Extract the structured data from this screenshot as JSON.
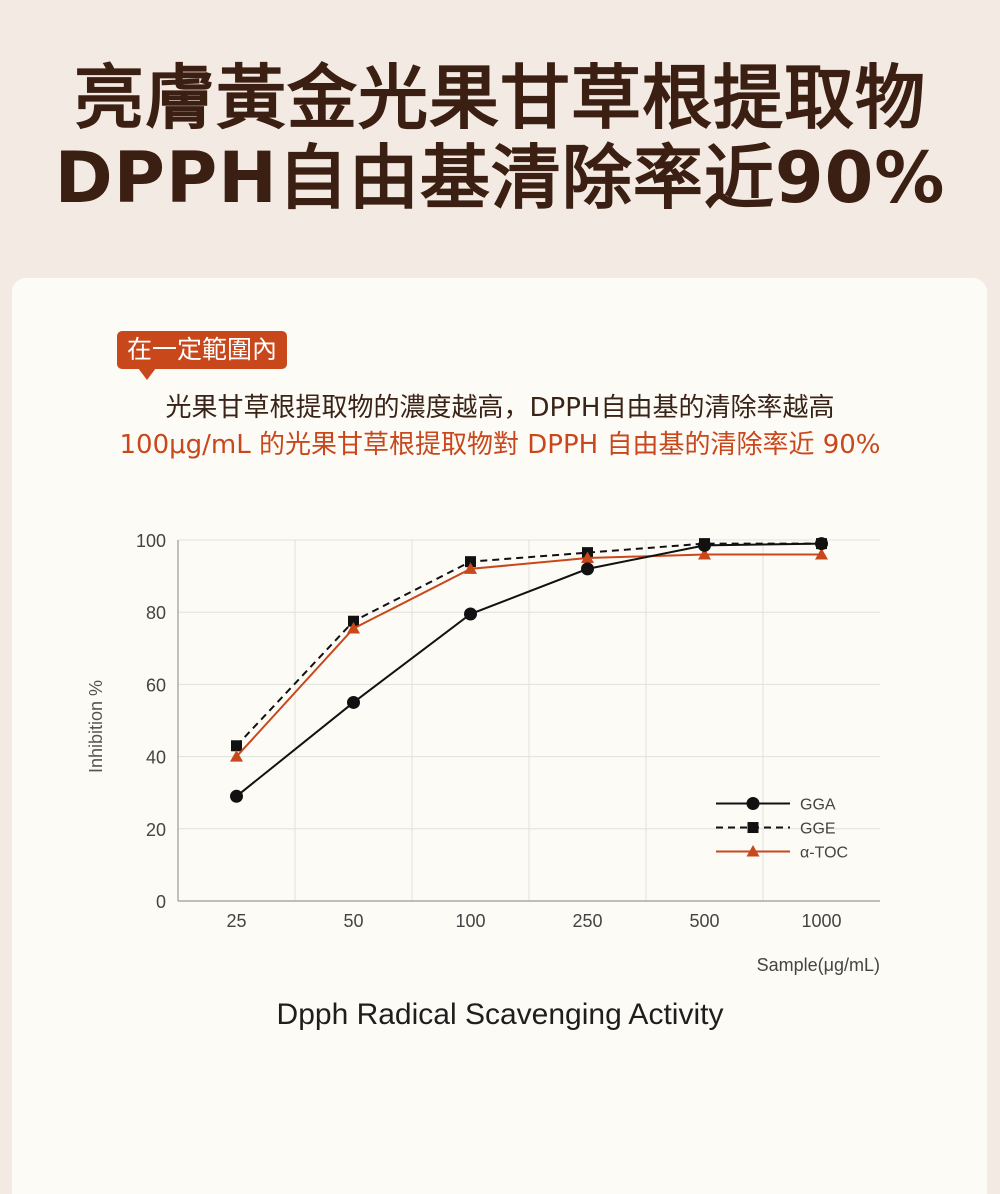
{
  "headline": {
    "line1": "亮膚黃金光果甘草根提取物",
    "line2": "DPPH自由基清除率近90%"
  },
  "tag_label": "在一定範圍內",
  "description": {
    "line1": "光果甘草根提取物的濃度越高，DPPH自由基的清除率越高",
    "line2": "100μg/mL 的光果甘草根提取物對 DPPH 自由基的清除率近 90%"
  },
  "colors": {
    "background": "#f3ebe3",
    "card": "#fdfbf6",
    "headline": "#3b1f12",
    "accent": "#c8481c",
    "series_black": "#111111"
  },
  "chart_data": {
    "type": "line",
    "title": "Dpph Radical Scavenging Activity",
    "xlabel": "Sample(μg/mL)",
    "ylabel": "Inhibition %",
    "categories": [
      "25",
      "50",
      "100",
      "250",
      "500",
      "1000"
    ],
    "yticks": [
      "0",
      "20",
      "40",
      "60",
      "80",
      "100"
    ],
    "ylim": [
      0,
      100
    ],
    "grid": true,
    "legend_position": "bottom-right",
    "series": [
      {
        "name": "GGA",
        "style": "solid",
        "marker": "circle",
        "color": "#111111",
        "values": [
          29,
          55,
          79.5,
          92,
          98.5,
          99
        ]
      },
      {
        "name": "GGE",
        "style": "dashed",
        "marker": "square",
        "color": "#111111",
        "values": [
          43,
          77.5,
          94,
          96.5,
          99,
          99
        ]
      },
      {
        "name": "α-TOC",
        "style": "solid",
        "marker": "triangle",
        "color": "#c8481c",
        "values": [
          40,
          75.5,
          92,
          95,
          96,
          96
        ]
      }
    ]
  }
}
